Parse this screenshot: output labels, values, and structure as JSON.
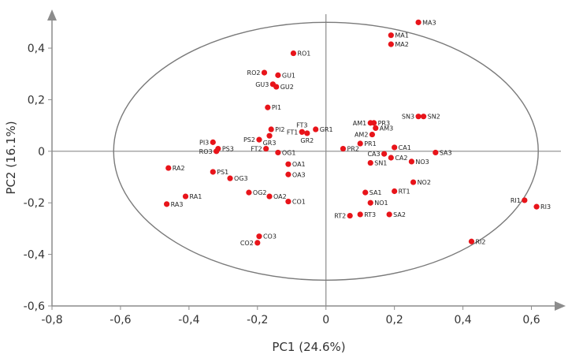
{
  "chart_data": {
    "type": "scatter",
    "title": "",
    "xlabel": "PC1 (24.6%)",
    "ylabel": "PC2 (16.1%)",
    "xlim": [
      -0.8,
      0.7
    ],
    "ylim": [
      -0.6,
      0.55
    ],
    "x_ticks": [
      {
        "v": -0.8,
        "label": "-0,8"
      },
      {
        "v": -0.6,
        "label": "-0,6"
      },
      {
        "v": -0.4,
        "label": "-0,4"
      },
      {
        "v": -0.2,
        "label": "-0,2"
      },
      {
        "v": 0,
        "label": "0"
      },
      {
        "v": 0.2,
        "label": "0,2"
      },
      {
        "v": 0.4,
        "label": "0,4"
      },
      {
        "v": 0.6,
        "label": "0,6"
      }
    ],
    "y_ticks": [
      {
        "v": 0.4,
        "label": "0,4"
      },
      {
        "v": 0.2,
        "label": "0,2"
      },
      {
        "v": 0,
        "label": "0"
      },
      {
        "v": -0.2,
        "label": "-0,2"
      },
      {
        "v": -0.4,
        "label": "-0,4"
      },
      {
        "v": -0.6,
        "label": "-0,6"
      }
    ],
    "grid": false,
    "ellipse": {
      "cx": 0,
      "cy": 0,
      "rx": 0.62,
      "ry": 0.5
    },
    "marker_color": "#e8141a",
    "axis_color": "#8c8c8c",
    "points": [
      {
        "label": "MA3",
        "x": 0.27,
        "y": 0.5,
        "side": "right"
      },
      {
        "label": "MA1",
        "x": 0.19,
        "y": 0.45,
        "side": "right"
      },
      {
        "label": "MA2",
        "x": 0.19,
        "y": 0.415,
        "side": "right"
      },
      {
        "label": "RO1",
        "x": -0.095,
        "y": 0.38,
        "side": "right"
      },
      {
        "label": "RO2",
        "x": -0.18,
        "y": 0.305,
        "side": "left"
      },
      {
        "label": "GU1",
        "x": -0.14,
        "y": 0.295,
        "side": "right"
      },
      {
        "label": "GU3",
        "x": -0.155,
        "y": 0.26,
        "side": "left"
      },
      {
        "label": "GU2",
        "x": -0.145,
        "y": 0.25,
        "side": "right"
      },
      {
        "label": "PI1",
        "x": -0.17,
        "y": 0.17,
        "side": "right"
      },
      {
        "label": "SN3",
        "x": 0.27,
        "y": 0.135,
        "side": "left"
      },
      {
        "label": "SN2",
        "x": 0.285,
        "y": 0.135,
        "side": "right"
      },
      {
        "label": "AM1",
        "x": 0.13,
        "y": 0.11,
        "side": "left"
      },
      {
        "label": "PR3",
        "x": 0.14,
        "y": 0.11,
        "side": "right"
      },
      {
        "label": "AM3",
        "x": 0.145,
        "y": 0.09,
        "side": "right"
      },
      {
        "label": "AM2",
        "x": 0.135,
        "y": 0.065,
        "side": "left"
      },
      {
        "label": "FT3",
        "x": -0.07,
        "y": 0.075,
        "side": "above"
      },
      {
        "label": "FT1",
        "x": -0.07,
        "y": 0.075,
        "side": "left"
      },
      {
        "label": "GR1",
        "x": -0.03,
        "y": 0.085,
        "side": "right"
      },
      {
        "label": "PI2",
        "x": -0.16,
        "y": 0.085,
        "side": "right"
      },
      {
        "label": "GR2",
        "x": -0.055,
        "y": 0.07,
        "side": "below"
      },
      {
        "label": "PS2",
        "x": -0.195,
        "y": 0.045,
        "side": "left"
      },
      {
        "label": "GR3",
        "x": -0.165,
        "y": 0.06,
        "side": "below"
      },
      {
        "label": "PI3",
        "x": -0.33,
        "y": 0.035,
        "side": "left"
      },
      {
        "label": "PS3",
        "x": -0.315,
        "y": 0.01,
        "side": "right"
      },
      {
        "label": "RO3",
        "x": -0.32,
        "y": 0.0,
        "side": "left"
      },
      {
        "label": "FT2",
        "x": -0.175,
        "y": 0.01,
        "side": "left"
      },
      {
        "label": "OG1",
        "x": -0.14,
        "y": -0.005,
        "side": "right"
      },
      {
        "label": "PR1",
        "x": 0.1,
        "y": 0.03,
        "side": "right"
      },
      {
        "label": "PR2",
        "x": 0.05,
        "y": 0.01,
        "side": "right"
      },
      {
        "label": "CA1",
        "x": 0.2,
        "y": 0.015,
        "side": "right"
      },
      {
        "label": "CA3",
        "x": 0.17,
        "y": -0.01,
        "side": "left"
      },
      {
        "label": "CA2",
        "x": 0.19,
        "y": -0.025,
        "side": "right"
      },
      {
        "label": "SA3",
        "x": 0.32,
        "y": -0.005,
        "side": "right"
      },
      {
        "label": "SN1",
        "x": 0.13,
        "y": -0.045,
        "side": "right"
      },
      {
        "label": "NO3",
        "x": 0.25,
        "y": -0.04,
        "side": "right"
      },
      {
        "label": "OA1",
        "x": -0.11,
        "y": -0.05,
        "side": "right"
      },
      {
        "label": "OA3",
        "x": -0.11,
        "y": -0.09,
        "side": "right"
      },
      {
        "label": "RA2",
        "x": -0.46,
        "y": -0.065,
        "side": "right"
      },
      {
        "label": "PS1",
        "x": -0.33,
        "y": -0.08,
        "side": "right"
      },
      {
        "label": "OG3",
        "x": -0.28,
        "y": -0.105,
        "side": "right"
      },
      {
        "label": "NO2",
        "x": 0.255,
        "y": -0.12,
        "side": "right"
      },
      {
        "label": "SA1",
        "x": 0.115,
        "y": -0.16,
        "side": "right"
      },
      {
        "label": "RT1",
        "x": 0.2,
        "y": -0.155,
        "side": "right"
      },
      {
        "label": "OG2",
        "x": -0.225,
        "y": -0.16,
        "side": "right"
      },
      {
        "label": "OA2",
        "x": -0.165,
        "y": -0.175,
        "side": "right"
      },
      {
        "label": "RA1",
        "x": -0.41,
        "y": -0.175,
        "side": "right"
      },
      {
        "label": "RI1",
        "x": 0.58,
        "y": -0.19,
        "side": "left"
      },
      {
        "label": "RI3",
        "x": 0.615,
        "y": -0.215,
        "side": "right"
      },
      {
        "label": "CO1",
        "x": -0.11,
        "y": -0.195,
        "side": "right"
      },
      {
        "label": "NO1",
        "x": 0.13,
        "y": -0.2,
        "side": "right"
      },
      {
        "label": "RA3",
        "x": -0.465,
        "y": -0.205,
        "side": "right"
      },
      {
        "label": "RT2",
        "x": 0.07,
        "y": -0.25,
        "side": "left"
      },
      {
        "label": "RT3",
        "x": 0.1,
        "y": -0.245,
        "side": "right"
      },
      {
        "label": "SA2",
        "x": 0.185,
        "y": -0.245,
        "side": "right"
      },
      {
        "label": "RI2",
        "x": 0.425,
        "y": -0.35,
        "side": "right"
      },
      {
        "label": "CO3",
        "x": -0.195,
        "y": -0.33,
        "side": "right"
      },
      {
        "label": "CO2",
        "x": -0.2,
        "y": -0.355,
        "side": "left"
      }
    ]
  }
}
